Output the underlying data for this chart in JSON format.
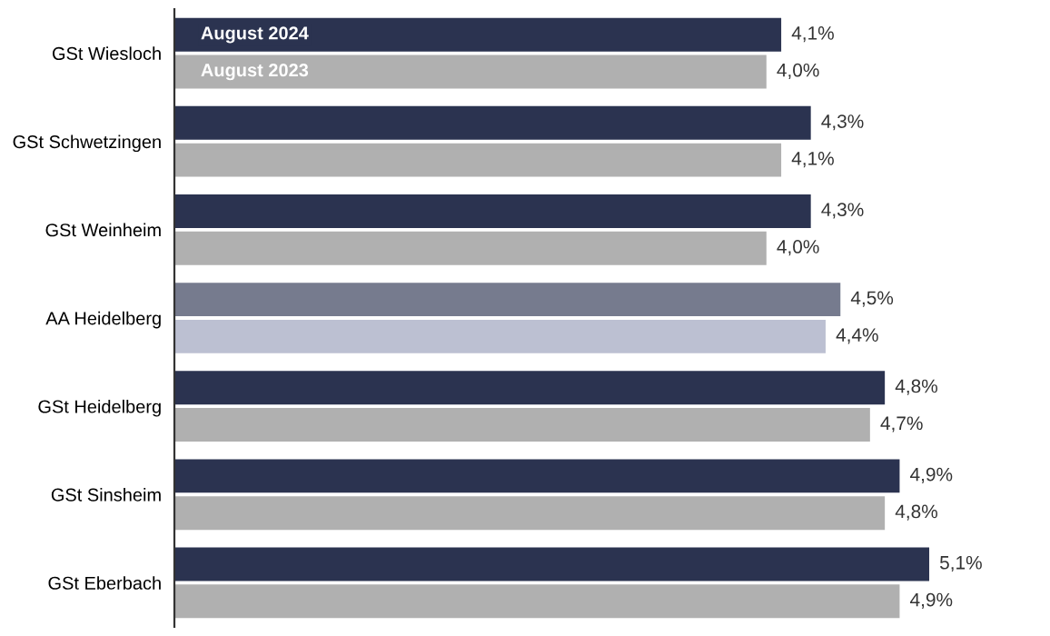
{
  "chart_data": {
    "type": "bar",
    "orientation": "horizontal",
    "categories": [
      "GSt Wiesloch",
      "GSt Schwetzingen",
      "GSt Weinheim",
      "AA Heidelberg",
      "GSt Heidelberg",
      "GSt Sinsheim",
      "GSt Eberbach"
    ],
    "series": [
      {
        "name": "August 2024",
        "color": "#2b3350",
        "colors": [
          "#2b3350",
          "#2b3350",
          "#2b3350",
          "#767b8e",
          "#2b3350",
          "#2b3350",
          "#2b3350"
        ],
        "values": [
          4.1,
          4.3,
          4.3,
          4.5,
          4.8,
          4.9,
          5.1
        ],
        "value_labels": [
          "4,1%",
          "4,3%",
          "4,3%",
          "4,5%",
          "4,8%",
          "4,9%",
          "5,1%"
        ]
      },
      {
        "name": "August 2023",
        "color": "#b0b0b0",
        "colors": [
          "#b0b0b0",
          "#b0b0b0",
          "#b0b0b0",
          "#bcc0d2",
          "#b0b0b0",
          "#b0b0b0",
          "#b0b0b0"
        ],
        "values": [
          4.0,
          4.1,
          4.0,
          4.4,
          4.7,
          4.8,
          4.9
        ],
        "value_labels": [
          "4,0%",
          "4,1%",
          "4,0%",
          "4,4%",
          "4,7%",
          "4,8%",
          "4,9%"
        ]
      }
    ],
    "tick_labels": "y",
    "legend": "top left",
    "grid": false
  }
}
